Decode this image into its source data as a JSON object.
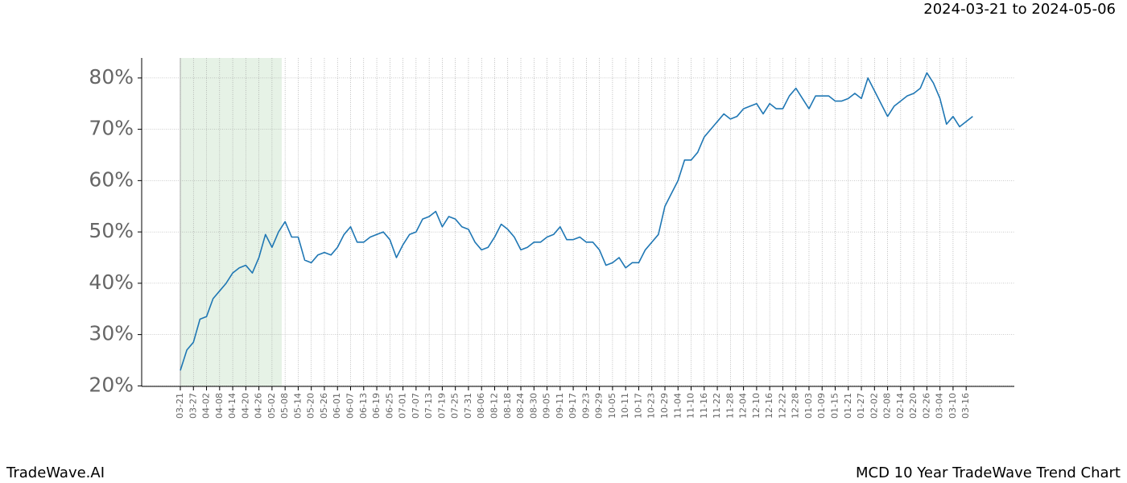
{
  "chart_data": {
    "type": "line",
    "title": "2024-03-21 to 2024-05-06",
    "brand": "TradeWave.AI",
    "caption": "MCD 10 Year TradeWave Trend Chart",
    "x": [
      "03-21",
      null,
      "03-27",
      null,
      "04-02",
      null,
      "04-08",
      null,
      "04-14",
      null,
      "04-20",
      null,
      "04-26",
      null,
      "05-02",
      null,
      "05-08",
      null,
      "05-14",
      null,
      "05-20",
      null,
      "05-26",
      null,
      "06-01",
      null,
      "06-07",
      null,
      "06-13",
      null,
      "06-19",
      null,
      "06-25",
      null,
      "07-01",
      null,
      "07-07",
      null,
      "07-13",
      null,
      "07-19",
      null,
      "07-25",
      null,
      "07-31",
      null,
      "08-06",
      null,
      "08-12",
      null,
      "08-18",
      null,
      "08-24",
      null,
      "08-30",
      null,
      "09-05",
      null,
      "09-11",
      null,
      "09-17",
      null,
      "09-23",
      null,
      "09-29",
      null,
      "10-05",
      null,
      "10-11",
      null,
      "10-17",
      null,
      "10-23",
      null,
      "10-29",
      null,
      "11-04",
      null,
      "11-10",
      null,
      "11-16",
      null,
      "11-22",
      null,
      "11-28",
      null,
      "12-04",
      null,
      "12-10",
      null,
      "12-16",
      null,
      "12-22",
      null,
      "12-28",
      null,
      "01-03",
      null,
      "01-09",
      null,
      "01-15",
      null,
      "01-21",
      null,
      "01-27",
      null,
      "02-02",
      null,
      "02-08",
      null,
      "02-14",
      null,
      "02-20",
      null,
      "02-26",
      null,
      "03-04",
      null,
      "03-10",
      null,
      "03-16",
      null
    ],
    "series": [
      {
        "name": "MCD",
        "color": "#1f77b4",
        "values": [
          23,
          27,
          28.5,
          33,
          33.5,
          37,
          38.5,
          40,
          42,
          43,
          43.5,
          42,
          45,
          49.5,
          47,
          50,
          52,
          49,
          49,
          44.5,
          44,
          45.5,
          46,
          45.5,
          47,
          49.5,
          51,
          48,
          48,
          49,
          49.5,
          50,
          48.5,
          45,
          47.5,
          49.5,
          50,
          52.5,
          53,
          54,
          51,
          53,
          52.5,
          51,
          50.5,
          48,
          46.5,
          47,
          49,
          51.5,
          50.5,
          49,
          46.5,
          47,
          48,
          48,
          49,
          49.5,
          51,
          48.5,
          48.5,
          49,
          48,
          48,
          46.5,
          43.5,
          44,
          45,
          43,
          44,
          44,
          46.5,
          48,
          49.5,
          55,
          57.5,
          60,
          64,
          64,
          65.5,
          68.5,
          70,
          71.5,
          73,
          72,
          72.5,
          74,
          74.5,
          75,
          73,
          75,
          74,
          74,
          76.5,
          78,
          76,
          74,
          76.5,
          76.5,
          76.5,
          75.5,
          75.5,
          76,
          77,
          76,
          80,
          77.5,
          75,
          72.5,
          74.5,
          75.5,
          76.5,
          77,
          78,
          81,
          79,
          76,
          71,
          72.5,
          70.5,
          71.5,
          72.5
        ]
      }
    ],
    "ylim": [
      19.9,
      83.9
    ],
    "yticks": [
      {
        "value": 20,
        "label": "20%"
      },
      {
        "value": 30,
        "label": "30%"
      },
      {
        "value": 40,
        "label": "40%"
      },
      {
        "value": 50,
        "label": "50%"
      },
      {
        "value": 60,
        "label": "60%"
      },
      {
        "value": 70,
        "label": "70%"
      },
      {
        "value": 80,
        "label": "80%"
      }
    ],
    "grid": true
  }
}
